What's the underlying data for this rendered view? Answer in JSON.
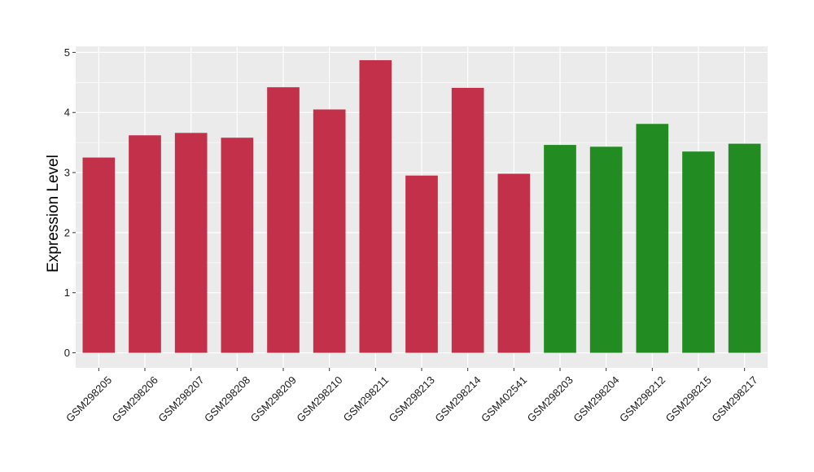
{
  "chart_data": {
    "type": "bar",
    "title": "",
    "xlabel": "",
    "ylabel": "Expression Level",
    "ylim": [
      -0.25,
      5.1
    ],
    "yticks": [
      0,
      1,
      2,
      3,
      4,
      5
    ],
    "grid": true,
    "legend": "none",
    "categories": [
      "GSM298205",
      "GSM298206",
      "GSM298207",
      "GSM298208",
      "GSM298209",
      "GSM298210",
      "GSM298211",
      "GSM298213",
      "GSM298214",
      "GSM402541",
      "GSM298203",
      "GSM298204",
      "GSM298212",
      "GSM298215",
      "GSM298217"
    ],
    "values": [
      3.25,
      3.62,
      3.66,
      3.58,
      4.42,
      4.05,
      4.87,
      2.95,
      4.41,
      2.98,
      3.46,
      3.43,
      3.81,
      3.35,
      3.48
    ],
    "groups": [
      "red",
      "red",
      "red",
      "red",
      "red",
      "red",
      "red",
      "red",
      "red",
      "red",
      "green",
      "green",
      "green",
      "green",
      "green"
    ],
    "colors": {
      "red": "#c3304a",
      "green": "#228b22",
      "panel_background": "#ebebeb",
      "grid": "#ffffff"
    }
  }
}
